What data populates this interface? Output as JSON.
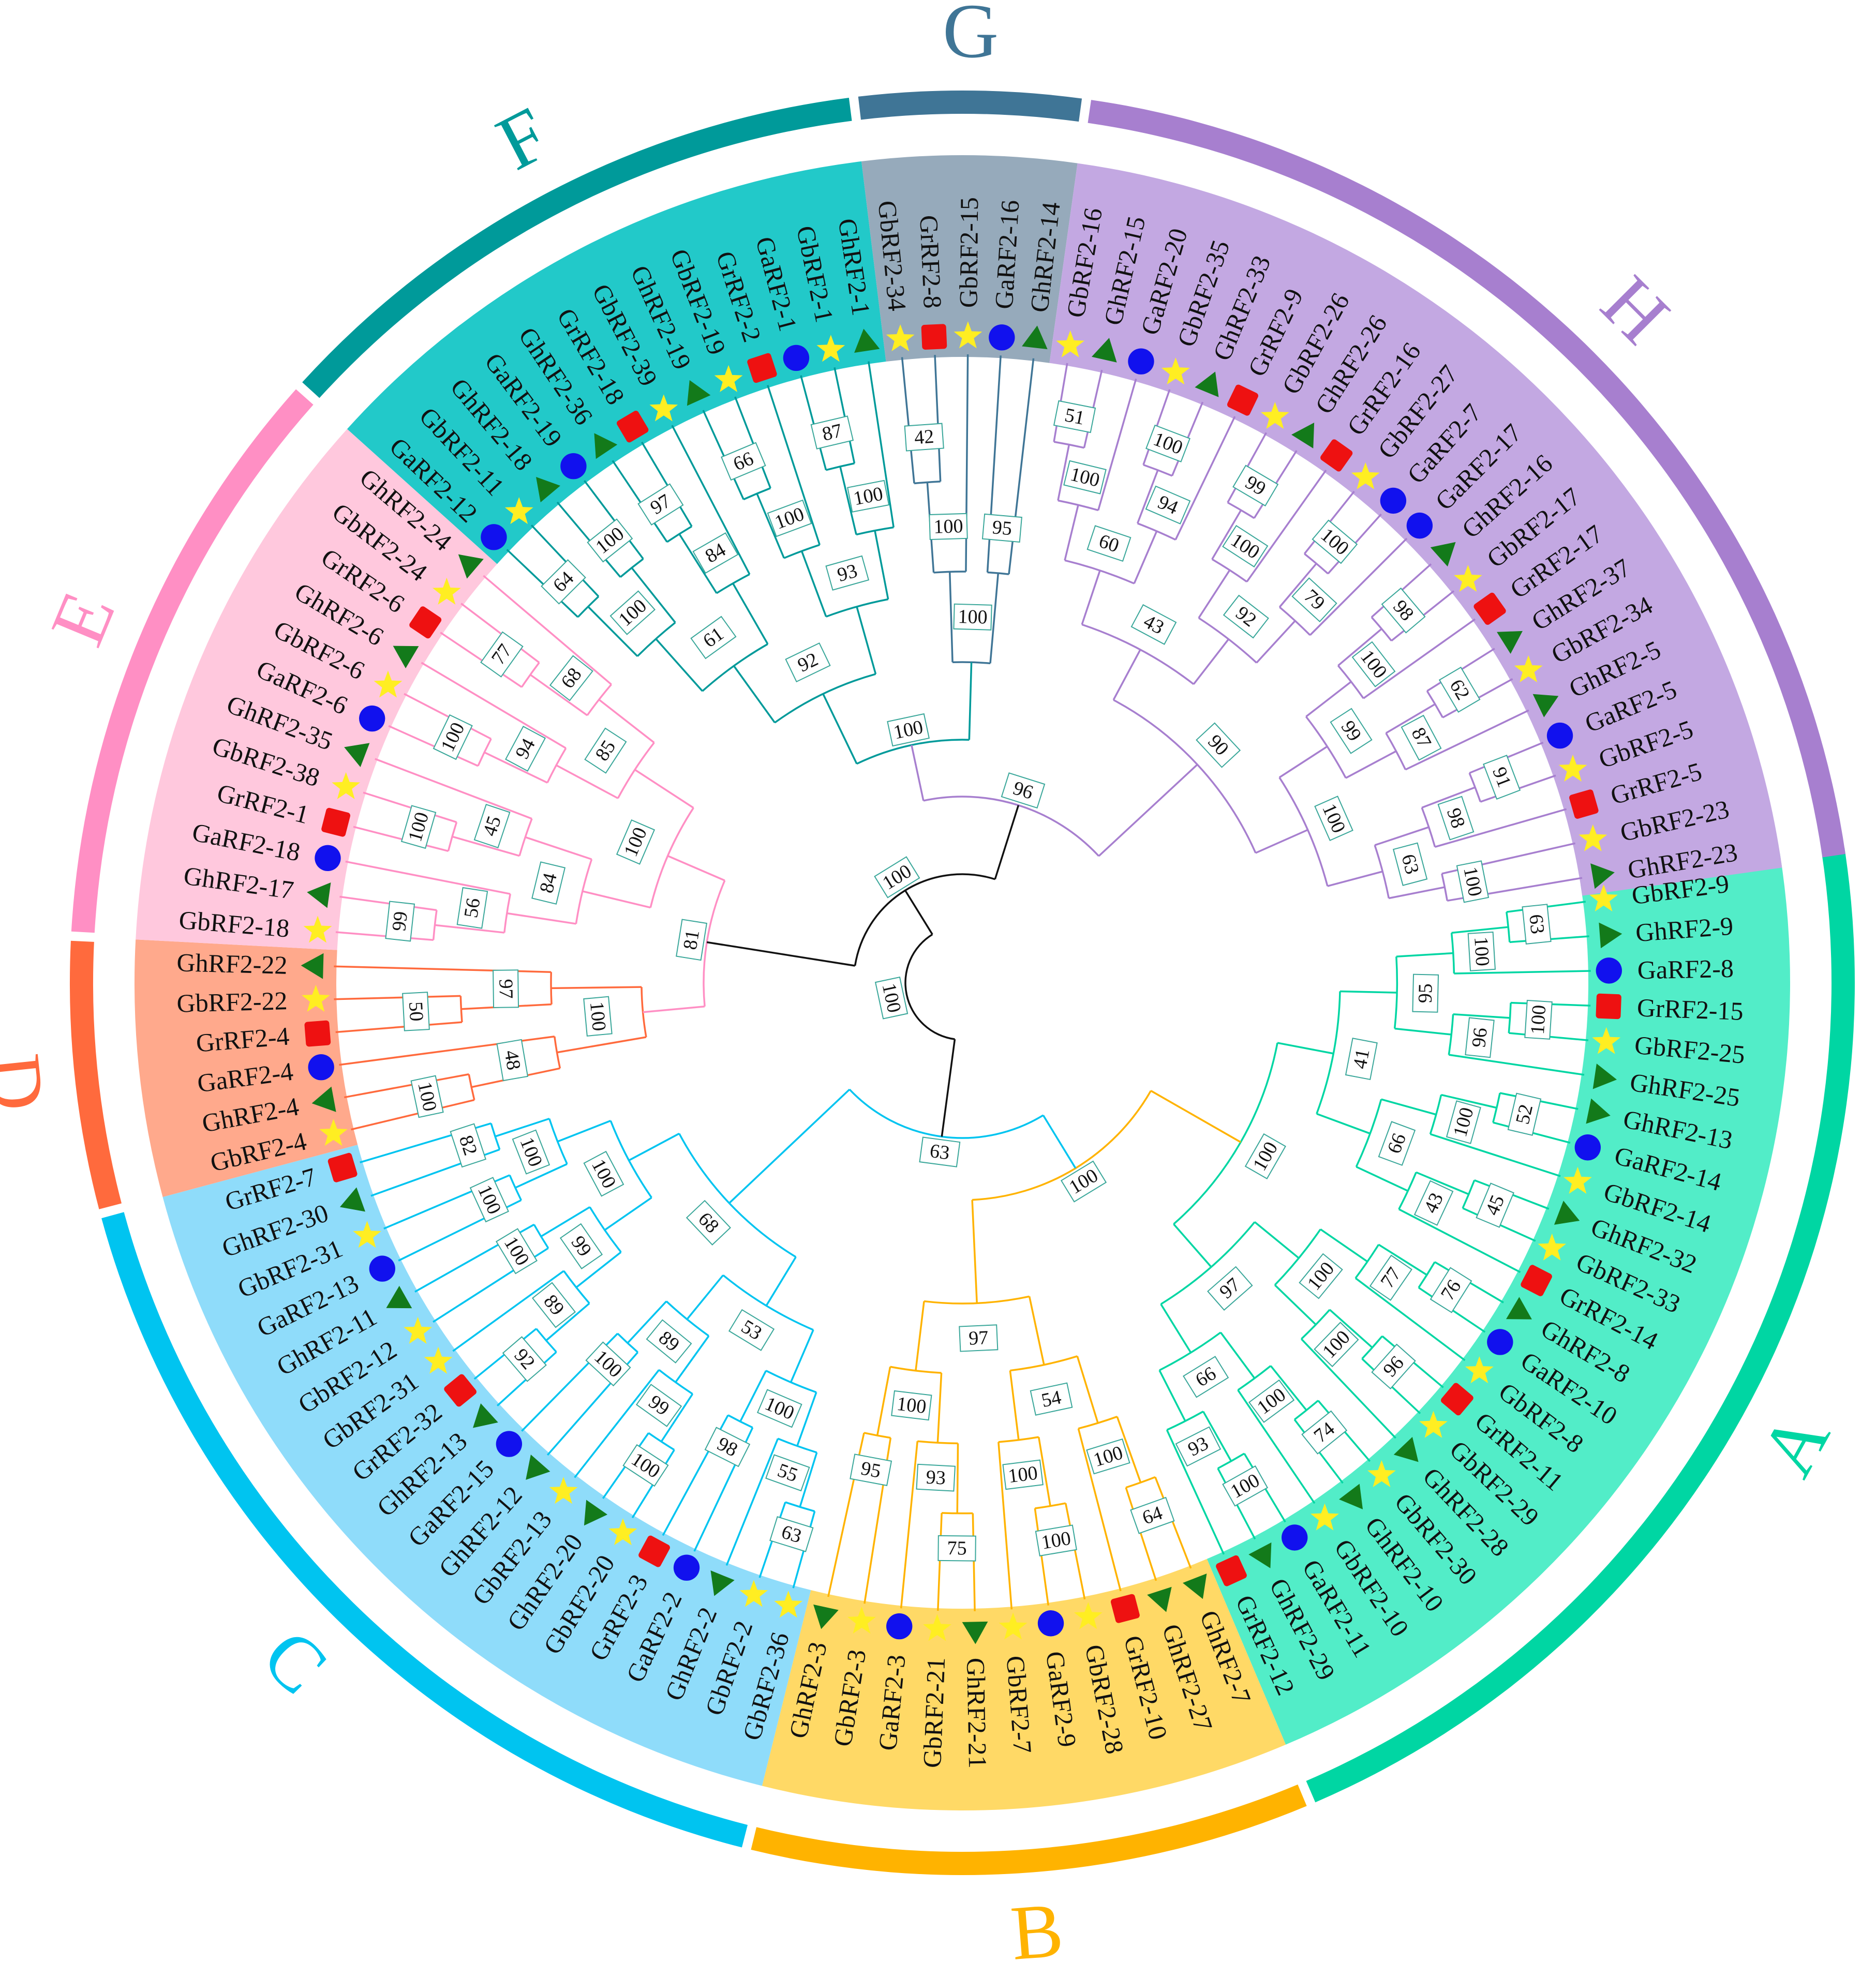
{
  "clades": [
    {
      "letter": "A",
      "color": "#00d6a3",
      "bg": "#52edc8",
      "leaves": [
        "GbRF2-9",
        "GhRF2-9",
        "GaRF2-8",
        "GrRF2-15",
        "GbRF2-25",
        "GhRF2-25",
        "GhRF2-13",
        "GaRF2-14",
        "GbRF2-14",
        "GhRF2-32",
        "GbRF2-33",
        "GrRF2-14",
        "GhRF2-8",
        "GaRF2-10",
        "GbRF2-8",
        "GrRF2-11",
        "GbRF2-29",
        "GhRF2-28",
        "GbRF2-30",
        "GhRF2-10",
        "GbRF2-10",
        "GaRF2-11",
        "GhRF2-29",
        "GrRF2-12"
      ]
    },
    {
      "letter": "B",
      "color": "#ffb300",
      "bg": "#ffd966",
      "leaves": [
        "GhRF2-7",
        "GhRF2-27",
        "GrRF2-10",
        "GbRF2-28",
        "GaRF2-9",
        "GbRF2-7",
        "GhRF2-21",
        "GbRF2-21",
        "GaRF2-3",
        "GbRF2-3",
        "GhRF2-3"
      ]
    },
    {
      "letter": "C",
      "color": "#00c4f0",
      "bg": "#8fdcfa",
      "leaves": [
        "GbRF2-36",
        "GbRF2-2",
        "GhRF2-2",
        "GaRF2-2",
        "GrRF2-3",
        "GbRF2-20",
        "GhRF2-20",
        "GbRF2-13",
        "GhRF2-12",
        "GaRF2-15",
        "GhRF2-13",
        "GrRF2-32",
        "GbRF2-31",
        "GbRF2-12",
        "GhRF2-11",
        "GaRF2-13",
        "GbRF2-31",
        "GhRF2-30",
        "GrRF2-7"
      ]
    },
    {
      "letter": "D",
      "color": "#ff6a3d",
      "bg": "#ffa98c",
      "leaves": [
        "GbRF2-4",
        "GhRF2-4",
        "GaRF2-4",
        "GrRF2-4",
        "GbRF2-22",
        "GhRF2-22"
      ]
    },
    {
      "letter": "E",
      "color": "#ff8fc4",
      "bg": "#ffc8dd",
      "leaves": [
        "GbRF2-18",
        "GhRF2-17",
        "GaRF2-18",
        "GrRF2-1",
        "GbRF2-38",
        "GhRF2-35",
        "GaRF2-6",
        "GbRF2-6",
        "GhRF2-6",
        "GrRF2-6",
        "GbRF2-24",
        "GhRF2-24"
      ]
    },
    {
      "letter": "F",
      "color": "#009a9a",
      "bg": "#22c9c9",
      "leaves": [
        "GaRF2-12",
        "GbRF2-11",
        "GhRF2-18",
        "GaRF2-19",
        "GhRF2-36",
        "GrRF2-18",
        "GbRF2-39",
        "GhRF2-19",
        "GbRF2-19",
        "GrRF2-2",
        "GaRF2-1",
        "GbRF2-1",
        "GhRF2-1"
      ]
    },
    {
      "letter": "G",
      "color": "#3f7596",
      "bg": "#96aabb",
      "leaves": [
        "GbRF2-34",
        "GrRF2-8",
        "GbRF2-15",
        "GaRF2-16",
        "GhRF2-14"
      ]
    },
    {
      "letter": "H",
      "color": "#a77fcf",
      "bg": "#c3a8e2",
      "leaves": [
        "GbRF2-16",
        "GhRF2-15",
        "GaRF2-20",
        "GbRF2-35",
        "GhRF2-33",
        "GrRF2-9",
        "GbRF2-26",
        "GhRF2-26",
        "GrRF2-16",
        "GbRF2-27",
        "GaRF2-7",
        "GaRF2-17",
        "GhRF2-16",
        "GbRF2-17",
        "GrRF2-17",
        "GhRF2-37",
        "GbRF2-34",
        "GhRF2-5",
        "GaRF2-5",
        "GbRF2-5",
        "GrRF2-5",
        "GbRF2-23",
        "GhRF2-23"
      ]
    }
  ],
  "markers": {
    "Gb": {
      "shape": "star",
      "color": "#ffee22"
    },
    "Gh": {
      "shape": "triangle",
      "color": "#137a1a"
    },
    "Ga": {
      "shape": "circle",
      "color": "#1111ee"
    },
    "Gr": {
      "shape": "square",
      "color": "#ee1111"
    }
  },
  "bootstrap": [
    "63",
    "100",
    "100",
    "96",
    "95",
    "52",
    "100",
    "45",
    "43",
    "66",
    "41",
    "76",
    "77",
    "96",
    "100",
    "100",
    "74",
    "100",
    "100",
    "93",
    "66",
    "97",
    "100",
    "64",
    "100",
    "100",
    "100",
    "54",
    "75",
    "93",
    "95",
    "100",
    "97",
    "63",
    "55",
    "98",
    "100",
    "100",
    "99",
    "100",
    "89",
    "53",
    "92",
    "89",
    "100",
    "99",
    "100",
    "82",
    "100",
    "100",
    "68",
    "100",
    "48",
    "50",
    "97",
    "100",
    "99",
    "56",
    "100",
    "45",
    "84",
    "100",
    "94",
    "77",
    "68",
    "85",
    "100",
    "64",
    "100",
    "100",
    "97",
    "84",
    "61",
    "66",
    "100",
    "87",
    "100",
    "93",
    "92",
    "42",
    "100",
    "95",
    "100",
    "51",
    "100",
    "100",
    "94",
    "60",
    "99",
    "100",
    "100",
    "79",
    "92",
    "43",
    "98",
    "100",
    "62",
    "87",
    "99",
    "91",
    "98",
    "100",
    "63",
    "100",
    "90",
    "100",
    "96",
    "81",
    "100"
  ]
}
